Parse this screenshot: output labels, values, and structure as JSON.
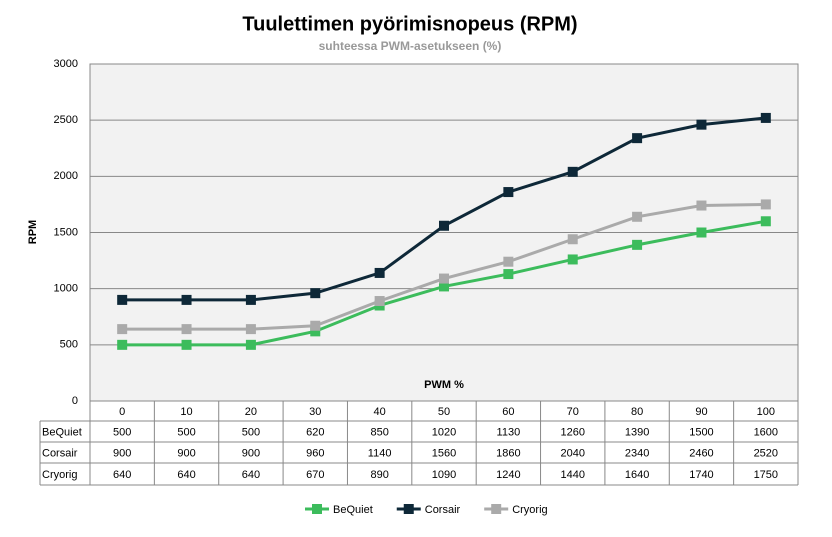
{
  "chart_data": {
    "type": "line",
    "title": "Tuulettimen pyörimisnopeus (RPM)",
    "subtitle": "suhteessa PWM-asetukseen (%)",
    "x_label": "PWM %",
    "y_label": "RPM",
    "categories": [
      0,
      10,
      20,
      30,
      40,
      50,
      60,
      70,
      80,
      90,
      100
    ],
    "series": [
      {
        "name": "BeQuiet",
        "color": "#3cbc5c",
        "values": [
          500,
          500,
          500,
          620,
          850,
          1020,
          1130,
          1260,
          1390,
          1500,
          1600
        ]
      },
      {
        "name": "Corsair",
        "color": "#0e2838",
        "values": [
          900,
          900,
          900,
          960,
          1140,
          1560,
          1860,
          2040,
          2340,
          2460,
          2520
        ]
      },
      {
        "name": "Cryorig",
        "color": "#aaaaaa",
        "values": [
          640,
          640,
          640,
          670,
          890,
          1090,
          1240,
          1440,
          1640,
          1740,
          1750
        ]
      }
    ],
    "ylim": [
      0,
      3000
    ],
    "yticks": [
      0,
      500,
      1000,
      1500,
      2000,
      2500,
      3000
    ],
    "grid": true,
    "legend": "bottom"
  }
}
